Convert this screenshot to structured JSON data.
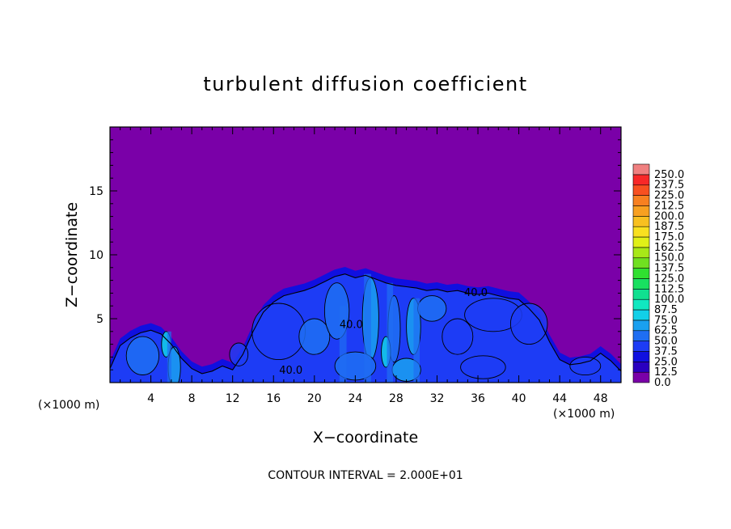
{
  "chart_data": {
    "type": "heatmap",
    "title": "turbulent diffusion coefficient",
    "xlabel": "X−coordinate",
    "ylabel": "Z−coordinate",
    "x_unit_left": "(×1000 m)",
    "x_unit_right": "(×1000 m)",
    "xlim": [
      0,
      50
    ],
    "ylim": [
      0,
      20
    ],
    "xticks": [
      4,
      8,
      12,
      16,
      20,
      24,
      28,
      32,
      36,
      40,
      44,
      48
    ],
    "yticks": [
      5,
      10,
      15
    ],
    "footer": "CONTOUR INTERVAL = 2.000E+01",
    "contour_labels": [
      {
        "text": "40.0",
        "x": 35.8,
        "z": 7.1
      },
      {
        "text": "40.0",
        "x": 23.6,
        "z": 4.6
      },
      {
        "text": "40.0",
        "x": 17.7,
        "z": 1.0
      }
    ],
    "colorbar": {
      "levels": [
        "0.0",
        "12.5",
        "25.0",
        "37.5",
        "50.0",
        "62.5",
        "75.0",
        "87.5",
        "100.0",
        "112.5",
        "125.0",
        "137.5",
        "150.0",
        "162.5",
        "175.0",
        "187.5",
        "200.0",
        "212.5",
        "225.0",
        "237.5",
        "250.0"
      ],
      "colors": [
        "#7a00a8",
        "#2a00c0",
        "#1010e0",
        "#1d3cf5",
        "#1f6ef2",
        "#1aa0f0",
        "#12d0e8",
        "#10e8c0",
        "#10e090",
        "#18e060",
        "#30e030",
        "#70e020",
        "#a8e818",
        "#e0f018",
        "#f8e020",
        "#f8c020",
        "#f8a020",
        "#f88020",
        "#f85020",
        "#f82828",
        "#f08080"
      ]
    },
    "field": {
      "background": 0.0,
      "envelope_top_z": [
        [
          0.0,
          1.4
        ],
        [
          1.0,
          3.2
        ],
        [
          2.0,
          3.8
        ],
        [
          3.0,
          4.2
        ],
        [
          4.0,
          4.4
        ],
        [
          5.0,
          4.1
        ],
        [
          6.0,
          3.3
        ],
        [
          7.0,
          2.2
        ],
        [
          8.0,
          1.4
        ],
        [
          9.0,
          1.0
        ],
        [
          10.0,
          1.2
        ],
        [
          11.0,
          1.6
        ],
        [
          12.0,
          1.3
        ],
        [
          13.0,
          2.5
        ],
        [
          14.0,
          4.3
        ],
        [
          15.0,
          5.8
        ],
        [
          16.0,
          6.6
        ],
        [
          17.0,
          7.1
        ],
        [
          18.0,
          7.3
        ],
        [
          19.0,
          7.5
        ],
        [
          20.0,
          7.8
        ],
        [
          21.0,
          8.2
        ],
        [
          22.0,
          8.6
        ],
        [
          23.0,
          8.8
        ],
        [
          24.0,
          8.5
        ],
        [
          25.0,
          8.7
        ],
        [
          26.0,
          8.4
        ],
        [
          27.0,
          8.1
        ],
        [
          28.0,
          7.9
        ],
        [
          29.0,
          7.8
        ],
        [
          30.0,
          7.7
        ],
        [
          31.0,
          7.5
        ],
        [
          32.0,
          7.6
        ],
        [
          33.0,
          7.4
        ],
        [
          34.0,
          7.5
        ],
        [
          35.0,
          7.3
        ],
        [
          36.0,
          7.2
        ],
        [
          37.0,
          7.3
        ],
        [
          38.0,
          7.1
        ],
        [
          39.0,
          6.9
        ],
        [
          40.0,
          6.8
        ],
        [
          41.0,
          6.1
        ],
        [
          42.0,
          5.2
        ],
        [
          43.0,
          3.5
        ],
        [
          44.0,
          2.1
        ],
        [
          45.0,
          1.7
        ],
        [
          46.0,
          1.8
        ],
        [
          47.0,
          2.0
        ],
        [
          48.0,
          2.6
        ],
        [
          49.0,
          2.0
        ],
        [
          50.0,
          1.2
        ]
      ],
      "core_values": [
        25.0,
        37.5,
        50.0,
        62.5,
        75.0
      ]
    }
  }
}
